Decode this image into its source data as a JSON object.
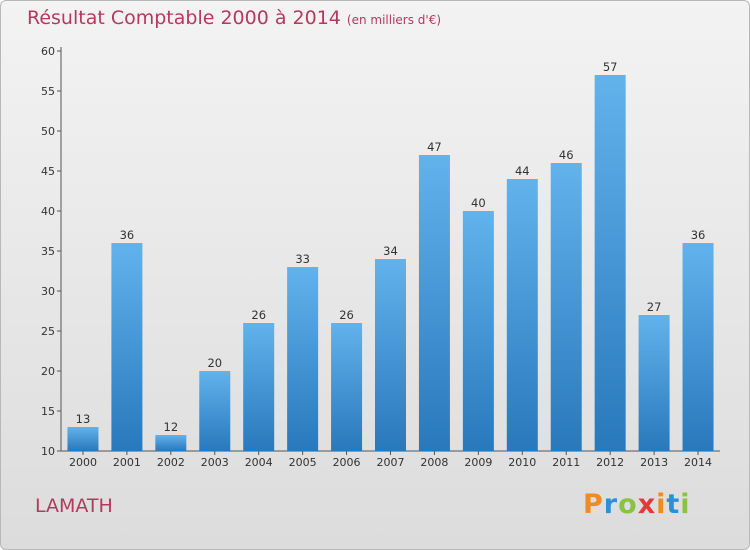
{
  "title": "Résultat Comptable 2000 à 2014",
  "subtitle": "(en milliers d'€)",
  "commune": "LAMATH",
  "logo": {
    "letters": [
      "P",
      "r",
      "o",
      "x",
      "i",
      "t",
      "i"
    ],
    "colors": [
      "#f08a24",
      "#2d8fd6",
      "#8ac33f",
      "#e23a3a",
      "#f08a24",
      "#2d8fd6",
      "#8ac33f"
    ]
  },
  "colors": {
    "bar_top": "#62b2ec",
    "bar_bottom": "#2879bc",
    "title": "#b5395c"
  },
  "chart_data": {
    "type": "bar",
    "title": "Résultat Comptable 2000 à 2014",
    "categories": [
      "2000",
      "2001",
      "2002",
      "2003",
      "2004",
      "2005",
      "2006",
      "2007",
      "2008",
      "2009",
      "2010",
      "2011",
      "2012",
      "2013",
      "2014"
    ],
    "values": [
      13,
      36,
      12,
      20,
      26,
      33,
      26,
      34,
      47,
      40,
      44,
      46,
      57,
      27,
      36
    ],
    "ylim": [
      10,
      60
    ],
    "yticks": [
      10,
      15,
      20,
      25,
      30,
      35,
      40,
      45,
      50,
      55,
      60
    ],
    "grid": false,
    "data_labels": true
  }
}
